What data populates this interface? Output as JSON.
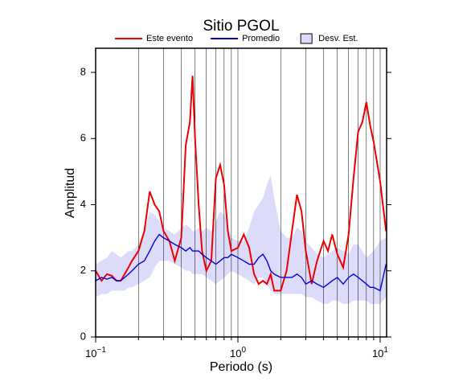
{
  "chart_data": {
    "type": "line",
    "title": "Sitio PGOL",
    "xlabel": "Periodo (s)",
    "ylabel": "Amplitud",
    "xscale": "log",
    "x": [
      0.1,
      0.11,
      0.12,
      0.13,
      0.14,
      0.15,
      0.16,
      0.17,
      0.18,
      0.2,
      0.22,
      0.24,
      0.26,
      0.28,
      0.3,
      0.33,
      0.36,
      0.4,
      0.43,
      0.46,
      0.48,
      0.5,
      0.53,
      0.56,
      0.6,
      0.65,
      0.7,
      0.75,
      0.8,
      0.85,
      0.9,
      1.0,
      1.1,
      1.2,
      1.3,
      1.4,
      1.5,
      1.6,
      1.7,
      1.8,
      2.0,
      2.2,
      2.4,
      2.6,
      2.8,
      3.0,
      3.3,
      3.6,
      4.0,
      4.3,
      4.6,
      5.0,
      5.5,
      6.0,
      6.5,
      7.0,
      7.5,
      8.0,
      8.5,
      9.0,
      10.0,
      11.0
    ],
    "series": [
      {
        "name": "Este evento",
        "color": "#ee0000",
        "values": [
          2.0,
          1.7,
          1.9,
          1.85,
          1.7,
          1.7,
          1.9,
          2.1,
          2.3,
          2.6,
          3.2,
          4.4,
          4.0,
          3.8,
          3.2,
          2.9,
          2.3,
          3.0,
          5.8,
          6.5,
          7.9,
          6.0,
          4.0,
          2.6,
          2.0,
          2.3,
          4.8,
          5.2,
          4.6,
          3.2,
          2.6,
          2.7,
          3.1,
          2.7,
          1.9,
          1.6,
          1.7,
          1.6,
          1.9,
          1.4,
          1.4,
          2.0,
          3.2,
          4.3,
          3.8,
          2.6,
          1.6,
          2.3,
          2.9,
          2.6,
          3.1,
          2.5,
          2.1,
          3.1,
          4.8,
          6.2,
          6.5,
          7.1,
          6.4,
          5.9,
          4.7,
          3.2
        ]
      },
      {
        "name": "Promedio",
        "color": "#0000dd",
        "values": [
          1.7,
          1.8,
          1.75,
          1.8,
          1.7,
          1.7,
          1.8,
          1.9,
          2.0,
          2.2,
          2.3,
          2.6,
          2.9,
          3.1,
          3.0,
          2.9,
          2.8,
          2.7,
          2.6,
          2.7,
          2.6,
          2.6,
          2.6,
          2.5,
          2.4,
          2.3,
          2.2,
          2.3,
          2.4,
          2.4,
          2.5,
          2.4,
          2.3,
          2.2,
          2.2,
          2.4,
          2.5,
          2.3,
          2.0,
          1.9,
          1.8,
          1.8,
          1.8,
          1.9,
          1.8,
          1.6,
          1.7,
          1.6,
          1.5,
          1.6,
          1.7,
          1.8,
          1.6,
          1.8,
          1.9,
          1.8,
          1.7,
          1.6,
          1.5,
          1.5,
          1.4,
          2.2
        ]
      }
    ],
    "band": {
      "name": "Desv. Est.",
      "color": "#dcdcfa",
      "upper": [
        2.2,
        2.3,
        2.4,
        2.6,
        2.5,
        2.4,
        2.5,
        2.6,
        2.6,
        2.8,
        3.2,
        3.8,
        3.7,
        3.5,
        3.3,
        3.2,
        3.1,
        3.3,
        3.4,
        3.3,
        3.2,
        3.2,
        3.3,
        3.2,
        3.3,
        3.2,
        3.5,
        3.8,
        3.7,
        3.4,
        3.0,
        2.9,
        2.9,
        3.3,
        3.8,
        4.0,
        4.2,
        4.6,
        4.9,
        4.2,
        3.2,
        3.0,
        3.0,
        3.3,
        3.2,
        2.9,
        2.7,
        2.5,
        2.4,
        2.5,
        2.6,
        2.7,
        2.6,
        2.5,
        2.8,
        2.8,
        2.6,
        2.4,
        2.5,
        2.6,
        2.9,
        3.0
      ],
      "lower": [
        1.2,
        1.3,
        1.3,
        1.4,
        1.4,
        1.4,
        1.4,
        1.5,
        1.5,
        1.6,
        1.7,
        1.8,
        2.1,
        2.3,
        2.3,
        2.3,
        2.2,
        2.1,
        2.0,
        2.0,
        1.9,
        1.9,
        1.9,
        1.9,
        1.8,
        1.7,
        1.6,
        1.7,
        1.8,
        1.9,
        2.0,
        1.9,
        1.8,
        1.7,
        1.6,
        1.8,
        1.8,
        1.6,
        1.4,
        1.3,
        1.3,
        1.3,
        1.3,
        1.3,
        1.3,
        1.2,
        1.2,
        1.1,
        1.0,
        1.0,
        1.1,
        1.1,
        1.0,
        1.0,
        1.1,
        1.1,
        1.1,
        1.1,
        1.0,
        1.0,
        1.0,
        1.2
      ]
    },
    "xlim": [
      0.1,
      11.1
    ],
    "ylim": [
      0,
      8.73
    ],
    "xticks": [
      {
        "value": 0.1,
        "label": "10",
        "exponent": "−1"
      },
      {
        "value": 1,
        "label": "10",
        "exponent": "0"
      },
      {
        "value": 10,
        "label": "10",
        "exponent": "1"
      }
    ],
    "xminor": [
      0.2,
      0.3,
      0.4,
      0.5,
      0.6,
      0.7,
      0.8,
      0.9,
      2,
      3,
      4,
      5,
      6,
      7,
      8,
      9
    ],
    "yticks": [
      0,
      2,
      4,
      6,
      8
    ],
    "grid": true
  }
}
